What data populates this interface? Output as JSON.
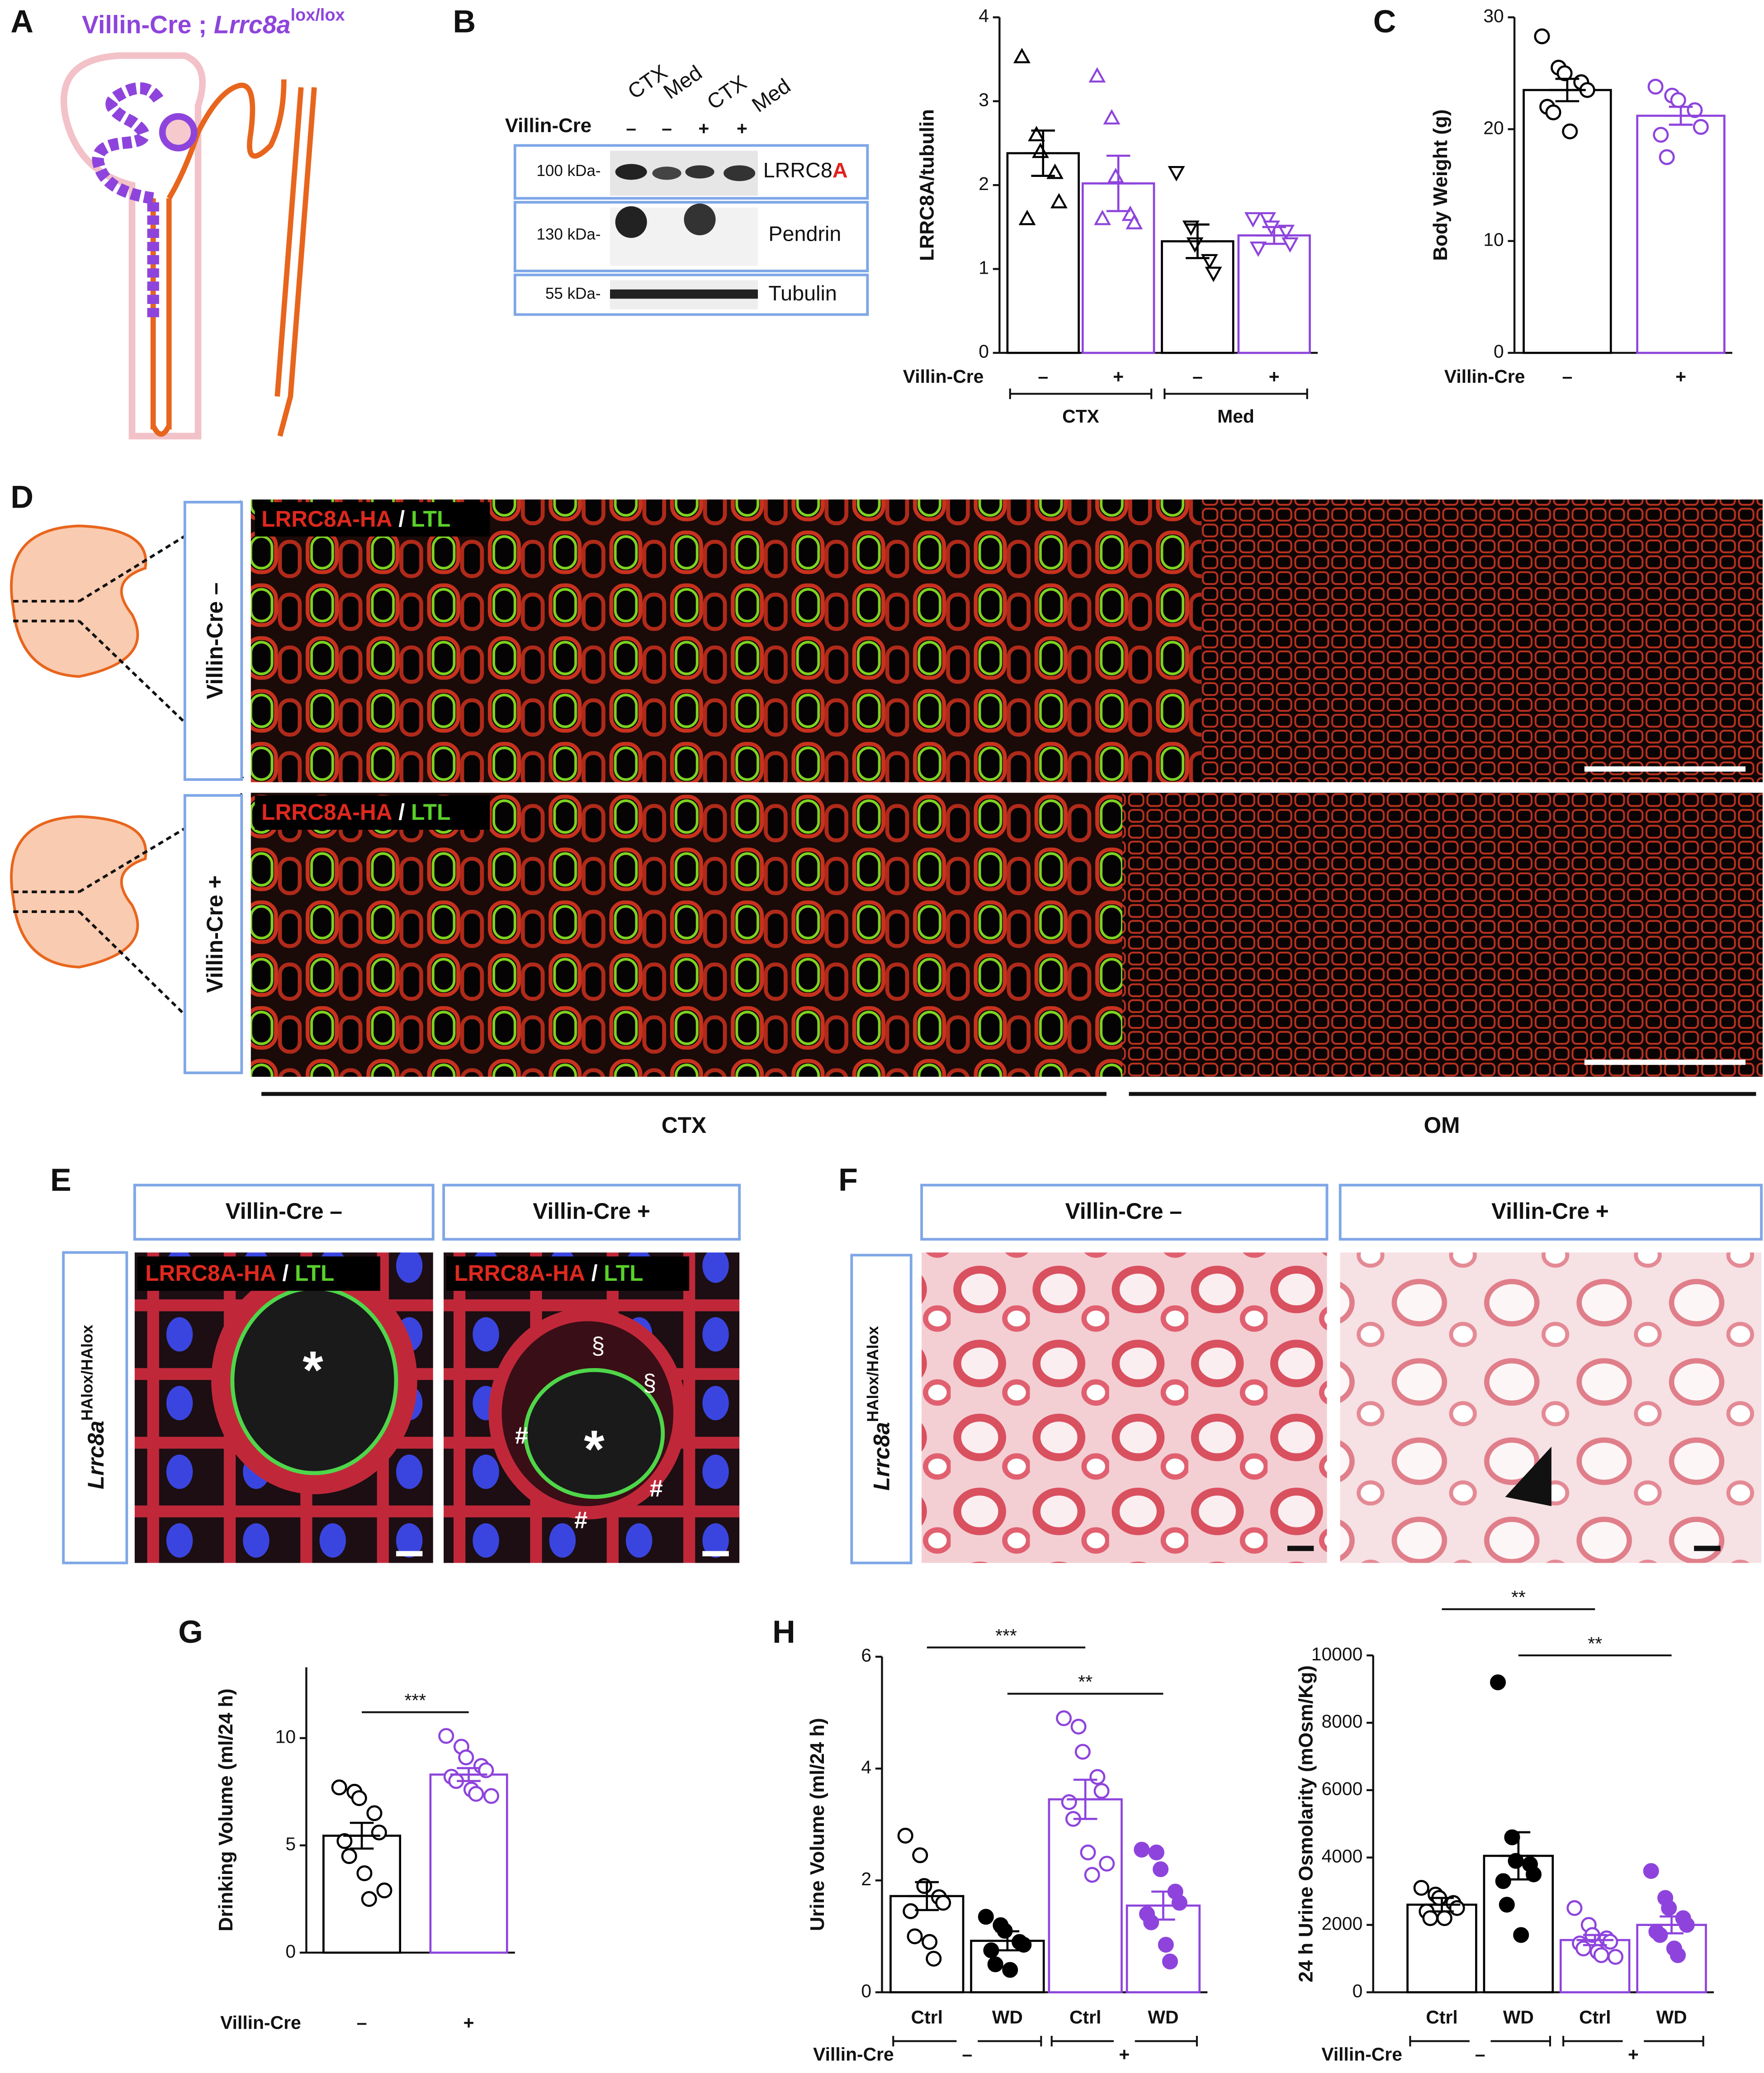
{
  "panels": {
    "a": {
      "letter": "A",
      "title": [
        "Villin-Cre ;",
        "Lrrc8a",
        "lox/lox"
      ]
    },
    "b": {
      "letter": "B",
      "blot": {
        "lanes": [
          "CTX",
          "Med",
          "CTX",
          "Med"
        ],
        "row_label": "Villin-Cre",
        "genotypes": [
          "–",
          "–",
          "+",
          "+"
        ],
        "bands": [
          {
            "size": "100 kDa-",
            "protein": "LRRC8",
            "suffix": "A"
          },
          {
            "size": "130 kDa-",
            "protein": "Pendrin"
          },
          {
            "size": "55 kDa-",
            "protein": "Tubulin"
          }
        ]
      }
    },
    "c": {
      "letter": "C"
    },
    "d": {
      "letter": "D",
      "rows": [
        "Villin-Cre –",
        "Villin-Cre +"
      ],
      "stain": [
        "LRRC8A-HA",
        "/",
        "LTL"
      ],
      "regions": [
        "CTX",
        "OM"
      ]
    },
    "e": {
      "letter": "E",
      "columns": [
        "Villin-Cre –",
        "Villin-Cre +"
      ],
      "genotype": [
        "Lrrc8a",
        "HAlox/HAlox"
      ],
      "stain": [
        "LRRC8A-HA",
        "/",
        "LTL"
      ],
      "symbols": [
        "*",
        "§",
        "#"
      ]
    },
    "f": {
      "letter": "F",
      "columns": [
        "Villin-Cre –",
        "Villin-Cre +"
      ],
      "genotype": [
        "Lrrc8a",
        "HAlox/HAlox"
      ]
    },
    "g": {
      "letter": "G"
    },
    "h": {
      "letter": "H"
    }
  },
  "chart_data": [
    {
      "type": "bar",
      "y_label": "LRRC8A/tubulin",
      "ylim": [
        0,
        4
      ],
      "yticks": [
        0,
        1,
        2,
        3,
        4
      ],
      "row_label": "Villin-Cre",
      "categories": [
        "–",
        "+",
        "–",
        "+"
      ],
      "groups": [
        "CTX",
        "Med"
      ],
      "values": [
        2.38,
        2.02,
        1.33,
        1.4
      ],
      "errors": [
        0.27,
        0.33,
        0.2,
        0.1
      ],
      "points": [
        [
          3.53,
          2.6,
          2.4,
          2.15,
          1.8,
          1.6
        ],
        [
          3.3,
          2.8,
          2.1,
          1.65,
          1.55,
          1.6
        ],
        [
          2.15,
          1.5,
          1.3,
          1.1,
          0.95
        ],
        [
          1.6,
          1.6,
          1.5,
          1.45,
          1.3,
          1.25
        ]
      ],
      "colors": [
        "#000000",
        "#8e44dc",
        "#000000",
        "#8e44dc"
      ],
      "markers": [
        "triangle-up",
        "triangle-up",
        "triangle-down",
        "triangle-down"
      ],
      "filled": [
        false,
        false,
        false,
        false
      ]
    },
    {
      "type": "bar",
      "y_label": "Body Weight (g)",
      "ylim": [
        0,
        30
      ],
      "yticks": [
        0,
        10,
        20,
        30
      ],
      "row_label": "Villin-Cre",
      "categories": [
        "–",
        "+"
      ],
      "values": [
        23.5,
        21.2
      ],
      "errors": [
        1,
        0.8
      ],
      "points": [
        [
          28.3,
          25.5,
          25,
          24.2,
          23.5,
          22,
          21.5,
          19.8
        ],
        [
          23.8,
          23,
          22.6,
          21.7,
          20.2,
          19.5,
          17.5
        ]
      ],
      "colors": [
        "#000000",
        "#8e44dc"
      ],
      "markers": [
        "circle",
        "circle"
      ],
      "filled": [
        false,
        false
      ]
    },
    {
      "type": "bar",
      "y_label": "Drinking Volume (ml/24 h)",
      "ylim": [
        0,
        13.3
      ],
      "yticks": [
        0,
        5,
        10
      ],
      "row_label": "Villin-Cre",
      "categories": [
        "–",
        "+"
      ],
      "values": [
        5.45,
        8.3
      ],
      "errors": [
        0.6,
        0.3
      ],
      "points": [
        [
          7.7,
          7.5,
          7.2,
          6.5,
          5.6,
          5.2,
          4.5,
          3.7,
          2.5,
          2.9
        ],
        [
          10.1,
          9.6,
          9.1,
          8.7,
          8.5,
          8.2,
          8,
          7.6,
          7.4,
          7.3
        ]
      ],
      "colors": [
        "#000000",
        "#8e44dc"
      ],
      "markers": [
        "circle",
        "circle"
      ],
      "filled": [
        false,
        false
      ],
      "brackets": [
        {
          "label": "***",
          "between": [
            0,
            1
          ]
        }
      ]
    },
    {
      "type": "bar",
      "y_label": "Urine Volume (ml/24 h)",
      "ylim": [
        0,
        6
      ],
      "yticks": [
        0,
        2,
        4,
        6
      ],
      "row_label": "Villin-Cre",
      "categories": [
        "Ctrl",
        "WD",
        "Ctrl",
        "WD"
      ],
      "groups": [
        "–",
        "+"
      ],
      "values": [
        1.72,
        0.92,
        3.45,
        1.55
      ],
      "errors": [
        0.25,
        0.17,
        0.35,
        0.25
      ],
      "points": [
        [
          2.8,
          2.45,
          1.9,
          1.7,
          1.6,
          1.45,
          1,
          0.9,
          0.6
        ],
        [
          1.35,
          1.2,
          1.1,
          0.9,
          0.85,
          0.75,
          0.5,
          0.4
        ],
        [
          4.9,
          4.75,
          4.3,
          3.85,
          3.6,
          3.4,
          3.1,
          2.5,
          2.1,
          2.3
        ],
        [
          2.55,
          2.5,
          2.2,
          1.8,
          1.6,
          1.4,
          1.25,
          0.85,
          0.55
        ]
      ],
      "colors": [
        "#000000",
        "#000000",
        "#8e44dc",
        "#8e44dc"
      ],
      "markers": [
        "circle",
        "circle",
        "circle",
        "circle"
      ],
      "filled": [
        false,
        true,
        false,
        true
      ],
      "brackets": [
        {
          "label": "***",
          "between": [
            0,
            2
          ]
        },
        {
          "label": "**",
          "between": [
            1,
            3
          ]
        }
      ]
    },
    {
      "type": "bar",
      "y_label": "24 h Urine Osmolarity (mOsm/Kg)",
      "ylim": [
        0,
        10000
      ],
      "yticks": [
        0,
        2000,
        4000,
        6000,
        8000,
        10000
      ],
      "row_label": "Villin-Cre",
      "categories": [
        "Ctrl",
        "WD",
        "Ctrl",
        "WD"
      ],
      "groups": [
        "–",
        "+"
      ],
      "values": [
        2600,
        4050,
        1550,
        2000
      ],
      "errors": [
        200,
        700,
        150,
        250
      ],
      "points": [
        [
          3100,
          2900,
          2800,
          2650,
          2500,
          2400,
          2200,
          2200
        ],
        [
          9200,
          4600,
          3900,
          3800,
          3500,
          3300,
          2600,
          1700
        ],
        [
          2500,
          2000,
          1700,
          1600,
          1500,
          1450,
          1300,
          1200,
          1100,
          1050
        ],
        [
          3600,
          2800,
          2500,
          2200,
          2000,
          1800,
          1700,
          1300,
          1100
        ]
      ],
      "colors": [
        "#000000",
        "#000000",
        "#8e44dc",
        "#8e44dc"
      ],
      "markers": [
        "circle",
        "circle",
        "circle",
        "circle"
      ],
      "filled": [
        false,
        true,
        false,
        true
      ],
      "brackets": [
        {
          "label": "**",
          "between": [
            0,
            2
          ]
        },
        {
          "label": "**",
          "between": [
            1,
            3
          ]
        }
      ]
    }
  ]
}
